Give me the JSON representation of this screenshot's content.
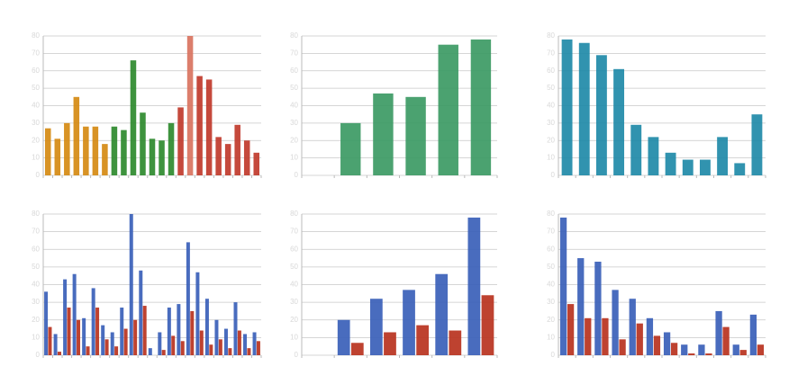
{
  "chart_data": [
    {
      "type": "bar",
      "ylim": [
        0,
        80
      ],
      "yticks": [
        0,
        10,
        20,
        30,
        40,
        50,
        60,
        70,
        80
      ],
      "grid": true,
      "series": [
        {
          "values": [
            27,
            21,
            30,
            45,
            28,
            28,
            18,
            28,
            26,
            66,
            36,
            21,
            20,
            30,
            39,
            80,
            57,
            55,
            22,
            18,
            29,
            20,
            13
          ],
          "colors": [
            "#d58a12",
            "#d58a12",
            "#d58a12",
            "#d58a12",
            "#d58a12",
            "#d58a12",
            "#d58a12",
            "#2e8a2e",
            "#2e8a2e",
            "#2e8a2e",
            "#2e8a2e",
            "#2e8a2e",
            "#2e8a2e",
            "#2e8a2e",
            "#c0392b",
            "#d9735f",
            "#c0392b",
            "#c0392b",
            "#c0392b",
            "#c0392b",
            "#c0392b",
            "#c0392b",
            "#c0392b"
          ]
        }
      ]
    },
    {
      "type": "bar",
      "ylim": [
        0,
        80
      ],
      "yticks": [
        0,
        10,
        20,
        30,
        40,
        50,
        60,
        70,
        80
      ],
      "grid": true,
      "series": [
        {
          "color": "#3c9a64",
          "values": [
            null,
            30,
            47,
            45,
            75,
            78
          ]
        }
      ]
    },
    {
      "type": "bar",
      "ylim": [
        0,
        80
      ],
      "yticks": [
        0,
        10,
        20,
        30,
        40,
        50,
        60,
        70,
        80
      ],
      "grid": true,
      "series": [
        {
          "color": "#1f8aa8",
          "values": [
            78,
            76,
            69,
            61,
            29,
            22,
            13,
            9,
            9,
            22,
            7,
            35
          ]
        }
      ]
    },
    {
      "type": "bar",
      "ylim": [
        0,
        80
      ],
      "yticks": [
        0,
        10,
        20,
        30,
        40,
        50,
        60,
        70,
        80
      ],
      "grid": true,
      "series": [
        {
          "color": "#3a5fb8",
          "values": [
            36,
            12,
            43,
            46,
            21,
            38,
            17,
            13,
            27,
            80,
            48,
            4,
            13,
            27,
            29,
            64,
            47,
            32,
            20,
            15,
            30,
            12,
            13
          ]
        },
        {
          "color": "#b8321e",
          "values": [
            16,
            2,
            27,
            20,
            5,
            27,
            9,
            5,
            15,
            20,
            28,
            0,
            3,
            11,
            8,
            25,
            14,
            6,
            9,
            4,
            14,
            4,
            8
          ]
        }
      ]
    },
    {
      "type": "bar",
      "ylim": [
        0,
        80
      ],
      "yticks": [
        0,
        10,
        20,
        30,
        40,
        50,
        60,
        70,
        80
      ],
      "grid": true,
      "series": [
        {
          "color": "#3a5fb8",
          "values": [
            null,
            20,
            32,
            37,
            46,
            78
          ]
        },
        {
          "color": "#b8321e",
          "values": [
            null,
            7,
            13,
            17,
            14,
            34
          ]
        }
      ]
    },
    {
      "type": "bar",
      "ylim": [
        0,
        80
      ],
      "yticks": [
        0,
        10,
        20,
        30,
        40,
        50,
        60,
        70,
        80
      ],
      "grid": true,
      "series": [
        {
          "color": "#3a5fb8",
          "values": [
            78,
            55,
            53,
            37,
            32,
            21,
            13,
            6,
            6,
            25,
            6,
            23
          ]
        },
        {
          "color": "#b8321e",
          "values": [
            29,
            21,
            21,
            9,
            18,
            11,
            7,
            1,
            1,
            16,
            3,
            6
          ]
        }
      ]
    }
  ]
}
